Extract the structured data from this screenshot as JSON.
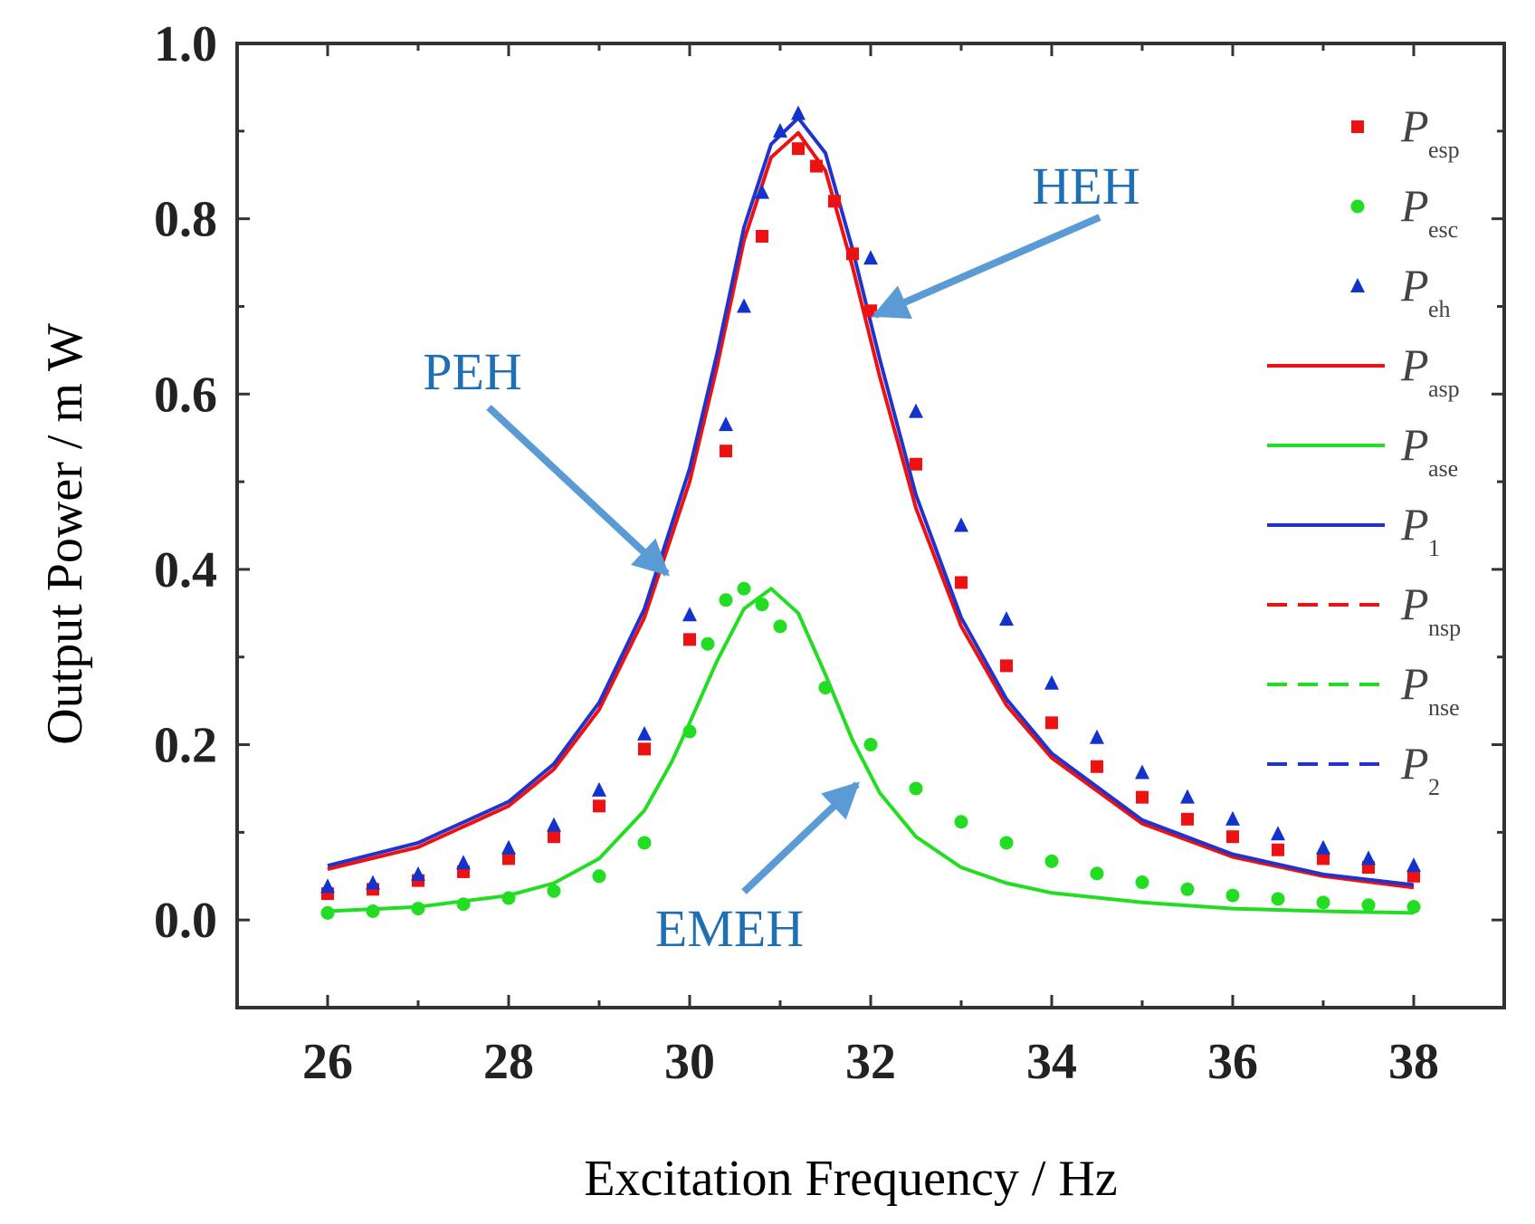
{
  "chart_data": {
    "type": "scatter",
    "xlabel": "Excitation Frequency / Hz",
    "ylabel": "Output Power / m W",
    "xlim": [
      25,
      39
    ],
    "ylim": [
      -0.1,
      1.0
    ],
    "x_ticks": [
      "26",
      "28",
      "30",
      "32",
      "34",
      "36",
      "38"
    ],
    "y_ticks": [
      "0.0",
      "0.2",
      "0.4",
      "0.6",
      "0.8",
      "1.0"
    ],
    "x_tick_values": [
      26,
      28,
      30,
      32,
      34,
      36,
      38
    ],
    "y_tick_values": [
      0.0,
      0.2,
      0.4,
      0.6,
      0.8,
      1.0
    ],
    "grid": false,
    "legend_position": "right",
    "points": [
      {
        "label_main": "P",
        "label_sub": "esp",
        "color": "#ee1111",
        "marker": "square",
        "x": [
          26,
          26.5,
          27,
          27.5,
          28,
          28.5,
          29,
          29.5,
          30,
          30.4,
          30.8,
          31.2,
          31.4,
          31.6,
          31.8,
          32,
          32.5,
          33,
          33.5,
          34,
          34.5,
          35,
          35.5,
          36,
          36.5,
          37,
          37.5,
          38
        ],
        "y": [
          0.03,
          0.035,
          0.045,
          0.055,
          0.07,
          0.095,
          0.13,
          0.195,
          0.32,
          0.535,
          0.78,
          0.88,
          0.86,
          0.82,
          0.76,
          0.695,
          0.52,
          0.385,
          0.29,
          0.225,
          0.175,
          0.14,
          0.115,
          0.095,
          0.08,
          0.07,
          0.06,
          0.05
        ]
      },
      {
        "label_main": "P",
        "label_sub": "esc",
        "color": "#22dd22",
        "marker": "circle",
        "x": [
          26,
          26.5,
          27,
          27.5,
          28,
          28.5,
          29,
          29.5,
          30,
          30.2,
          30.4,
          30.6,
          30.8,
          31,
          31.5,
          32,
          32.5,
          33,
          33.5,
          34,
          34.5,
          35,
          35.5,
          36,
          36.5,
          37,
          37.5,
          38
        ],
        "y": [
          0.008,
          0.01,
          0.013,
          0.018,
          0.025,
          0.033,
          0.05,
          0.088,
          0.215,
          0.315,
          0.365,
          0.378,
          0.36,
          0.335,
          0.265,
          0.2,
          0.15,
          0.112,
          0.088,
          0.067,
          0.053,
          0.043,
          0.035,
          0.028,
          0.024,
          0.02,
          0.017,
          0.015
        ]
      },
      {
        "label_main": "P",
        "label_sub": "eh",
        "color": "#1133cc",
        "marker": "triangle",
        "x": [
          26,
          26.5,
          27,
          27.5,
          28,
          28.5,
          29,
          29.5,
          30,
          30.4,
          30.6,
          30.8,
          31,
          31.2,
          32,
          32.5,
          33,
          33.5,
          34,
          34.5,
          35,
          35.5,
          36,
          36.5,
          37,
          37.5,
          38
        ],
        "y": [
          0.038,
          0.042,
          0.052,
          0.065,
          0.082,
          0.108,
          0.148,
          0.212,
          0.348,
          0.565,
          0.7,
          0.83,
          0.9,
          0.92,
          0.755,
          0.58,
          0.45,
          0.343,
          0.27,
          0.208,
          0.168,
          0.14,
          0.115,
          0.098,
          0.082,
          0.07,
          0.062
        ]
      }
    ],
    "series": [
      {
        "label_main": "P",
        "label_sub": "asp",
        "color": "#ee1111",
        "style": "solid",
        "x": [
          26,
          27,
          28,
          28.5,
          29,
          29.5,
          30,
          30.3,
          30.6,
          30.9,
          31.2,
          31.5,
          31.8,
          32.1,
          32.5,
          33,
          33.5,
          34,
          35,
          36,
          37,
          38
        ],
        "y": [
          0.058,
          0.083,
          0.13,
          0.172,
          0.24,
          0.345,
          0.5,
          0.63,
          0.775,
          0.87,
          0.898,
          0.855,
          0.745,
          0.62,
          0.47,
          0.335,
          0.245,
          0.185,
          0.11,
          0.072,
          0.05,
          0.037
        ]
      },
      {
        "label_main": "P",
        "label_sub": "ase",
        "color": "#22dd22",
        "style": "solid",
        "x": [
          26,
          27,
          28,
          28.5,
          29,
          29.5,
          29.8,
          30,
          30.3,
          30.6,
          30.9,
          31.2,
          31.5,
          31.8,
          32.1,
          32.5,
          33,
          33.5,
          34,
          35,
          36,
          37,
          38
        ],
        "y": [
          0.01,
          0.015,
          0.028,
          0.042,
          0.07,
          0.125,
          0.18,
          0.225,
          0.295,
          0.355,
          0.378,
          0.35,
          0.28,
          0.205,
          0.145,
          0.095,
          0.06,
          0.042,
          0.031,
          0.02,
          0.013,
          0.01,
          0.008
        ]
      },
      {
        "label_main": "P",
        "label_sub": "1",
        "color": "#2233cc",
        "style": "solid",
        "x": [
          26,
          27,
          28,
          28.5,
          29,
          29.5,
          30,
          30.3,
          30.6,
          30.9,
          31.2,
          31.5,
          31.8,
          32.1,
          32.5,
          33,
          33.5,
          34,
          35,
          36,
          37,
          38
        ],
        "y": [
          0.062,
          0.088,
          0.135,
          0.178,
          0.248,
          0.355,
          0.515,
          0.645,
          0.79,
          0.885,
          0.915,
          0.875,
          0.765,
          0.64,
          0.485,
          0.345,
          0.252,
          0.19,
          0.114,
          0.075,
          0.052,
          0.04
        ]
      },
      {
        "label_main": "P",
        "label_sub": "nsp",
        "color": "#ee1111",
        "style": "dashed",
        "x": [],
        "y": []
      },
      {
        "label_main": "P",
        "label_sub": "nse",
        "color": "#22dd22",
        "style": "dashed",
        "x": [],
        "y": []
      },
      {
        "label_main": "P",
        "label_sub": "2",
        "color": "#2233cc",
        "style": "dashed",
        "x": [],
        "y": []
      }
    ],
    "annotations": [
      {
        "text": "HEH",
        "arrow_to": [
          32.05,
          0.69
        ]
      },
      {
        "text": "PEH",
        "arrow_to": [
          29.75,
          0.395
        ]
      },
      {
        "text": "EMEH",
        "arrow_to": [
          31.85,
          0.155
        ]
      }
    ],
    "arrow_color": "#5b9bd5"
  }
}
